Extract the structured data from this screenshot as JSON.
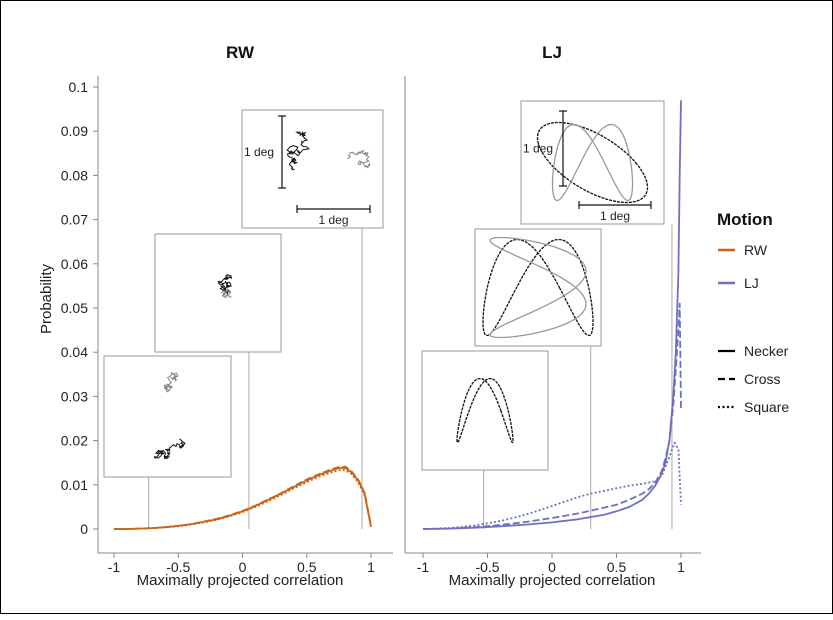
{
  "chart_data": [
    {
      "type": "line",
      "title": "RW",
      "xlabel": "Maximally projected correlation",
      "ylabel": "Probability",
      "xlim": [
        -1,
        1
      ],
      "ylim": [
        0,
        0.1
      ],
      "xticks": [
        "-1",
        "-0.5",
        "0",
        "0.5",
        "1"
      ],
      "yticks": [
        "0",
        "0.01",
        "0.02",
        "0.03",
        "0.04",
        "0.05",
        "0.06",
        "0.07",
        "0.08",
        "0.09",
        "0.1"
      ],
      "color": "#cc6317",
      "series": [
        {
          "style": "solid",
          "x": [
            -1,
            -0.9,
            -0.8,
            -0.7,
            -0.6,
            -0.5,
            -0.4,
            -0.3,
            -0.2,
            -0.1,
            0,
            0.1,
            0.2,
            0.3,
            0.4,
            0.5,
            0.6,
            0.7,
            0.75,
            0.8,
            0.85,
            0.9,
            0.95,
            1
          ],
          "y": [
            0,
            0,
            0.0001,
            0.0002,
            0.0004,
            0.0007,
            0.0011,
            0.0016,
            0.0022,
            0.003,
            0.004,
            0.0052,
            0.0066,
            0.008,
            0.0095,
            0.011,
            0.0123,
            0.0133,
            0.0138,
            0.0138,
            0.0128,
            0.011,
            0.008,
            0.0005
          ]
        },
        {
          "style": "dashed",
          "x": [
            -1,
            -0.9,
            -0.8,
            -0.7,
            -0.6,
            -0.5,
            -0.4,
            -0.3,
            -0.2,
            -0.1,
            0,
            0.1,
            0.2,
            0.3,
            0.4,
            0.5,
            0.6,
            0.7,
            0.75,
            0.8,
            0.85,
            0.9,
            0.95,
            1
          ],
          "y": [
            0,
            0,
            0.0001,
            0.0002,
            0.0004,
            0.0007,
            0.0011,
            0.0017,
            0.0023,
            0.0031,
            0.0041,
            0.0053,
            0.0067,
            0.0081,
            0.0097,
            0.0112,
            0.0125,
            0.0136,
            0.014,
            0.0141,
            0.013,
            0.0112,
            0.0082,
            0.0008
          ]
        },
        {
          "style": "dotted",
          "x": [
            -1,
            -0.9,
            -0.8,
            -0.7,
            -0.6,
            -0.5,
            -0.4,
            -0.3,
            -0.2,
            -0.1,
            0,
            0.1,
            0.2,
            0.3,
            0.4,
            0.5,
            0.6,
            0.7,
            0.75,
            0.8,
            0.85,
            0.9,
            0.95,
            1
          ],
          "y": [
            0,
            0,
            0.0001,
            0.0002,
            0.0004,
            0.0006,
            0.001,
            0.0015,
            0.0021,
            0.0029,
            0.0038,
            0.005,
            0.0063,
            0.0077,
            0.0092,
            0.0106,
            0.0119,
            0.0129,
            0.0133,
            0.0133,
            0.0124,
            0.0106,
            0.0077,
            0.0006
          ]
        }
      ],
      "annotation_x": [
        -0.73,
        0.05,
        0.93
      ],
      "insets": [
        {
          "scale_bar": false,
          "x_scale_label": "",
          "y_scale_label": ""
        },
        {
          "scale_bar": false,
          "x_scale_label": "",
          "y_scale_label": ""
        },
        {
          "scale_bar": true,
          "x_scale_label": "1 deg",
          "y_scale_label": "1 deg"
        }
      ]
    },
    {
      "type": "line",
      "title": "LJ",
      "xlabel": "Maximally projected correlation",
      "ylabel": "",
      "xlim": [
        -1,
        1
      ],
      "ylim": [
        0,
        0.1
      ],
      "xticks": [
        "-1",
        "-0.5",
        "0",
        "0.5",
        "1"
      ],
      "color": "#7070c0",
      "series": [
        {
          "style": "solid",
          "x": [
            -1,
            -0.8,
            -0.6,
            -0.4,
            -0.2,
            0,
            0.2,
            0.4,
            0.5,
            0.6,
            0.7,
            0.75,
            0.8,
            0.85,
            0.88,
            0.91,
            0.94,
            0.96,
            0.98,
            0.99,
            1
          ],
          "y": [
            0,
            0.0001,
            0.0003,
            0.0006,
            0.001,
            0.0015,
            0.0022,
            0.0032,
            0.004,
            0.005,
            0.0066,
            0.008,
            0.0098,
            0.0125,
            0.015,
            0.02,
            0.03,
            0.04,
            0.058,
            0.08,
            0.097
          ]
        },
        {
          "style": "dashed",
          "x": [
            -1,
            -0.8,
            -0.6,
            -0.4,
            -0.2,
            0,
            0.2,
            0.4,
            0.5,
            0.6,
            0.7,
            0.75,
            0.8,
            0.85,
            0.88,
            0.91,
            0.94,
            0.96,
            0.98,
            0.99,
            1
          ],
          "y": [
            0,
            0.0001,
            0.0004,
            0.0009,
            0.0016,
            0.0025,
            0.0035,
            0.0048,
            0.0055,
            0.0066,
            0.008,
            0.009,
            0.0105,
            0.013,
            0.016,
            0.02,
            0.028,
            0.036,
            0.045,
            0.051,
            0.027
          ]
        },
        {
          "style": "dotted",
          "x": [
            -1,
            -0.8,
            -0.6,
            -0.4,
            -0.3,
            -0.2,
            -0.1,
            0,
            0.1,
            0.2,
            0.3,
            0.4,
            0.5,
            0.6,
            0.7,
            0.8,
            0.85,
            0.9,
            0.95,
            0.98,
            1
          ],
          "y": [
            0,
            0.0002,
            0.0008,
            0.0018,
            0.0025,
            0.0033,
            0.0042,
            0.0052,
            0.0062,
            0.0072,
            0.008,
            0.0086,
            0.0092,
            0.0098,
            0.0102,
            0.0108,
            0.012,
            0.0155,
            0.0195,
            0.018,
            0.0055
          ]
        }
      ],
      "annotation_x": [
        -0.53,
        0.3,
        0.93
      ],
      "insets": [
        {
          "scale_bar": false,
          "x_scale_label": "",
          "y_scale_label": ""
        },
        {
          "scale_bar": false,
          "x_scale_label": "",
          "y_scale_label": ""
        },
        {
          "scale_bar": true,
          "x_scale_label": "1 deg",
          "y_scale_label": "1 deg"
        }
      ]
    }
  ],
  "legend": {
    "title": "Motion",
    "placement": "right",
    "color_items": [
      {
        "label": "RW",
        "color": "#cc6317"
      },
      {
        "label": "LJ",
        "color": "#7070c0"
      }
    ],
    "style_items": [
      {
        "label": "Necker",
        "style": "solid"
      },
      {
        "label": "Cross",
        "style": "dashed"
      },
      {
        "label": "Square",
        "style": "dotted"
      }
    ]
  }
}
